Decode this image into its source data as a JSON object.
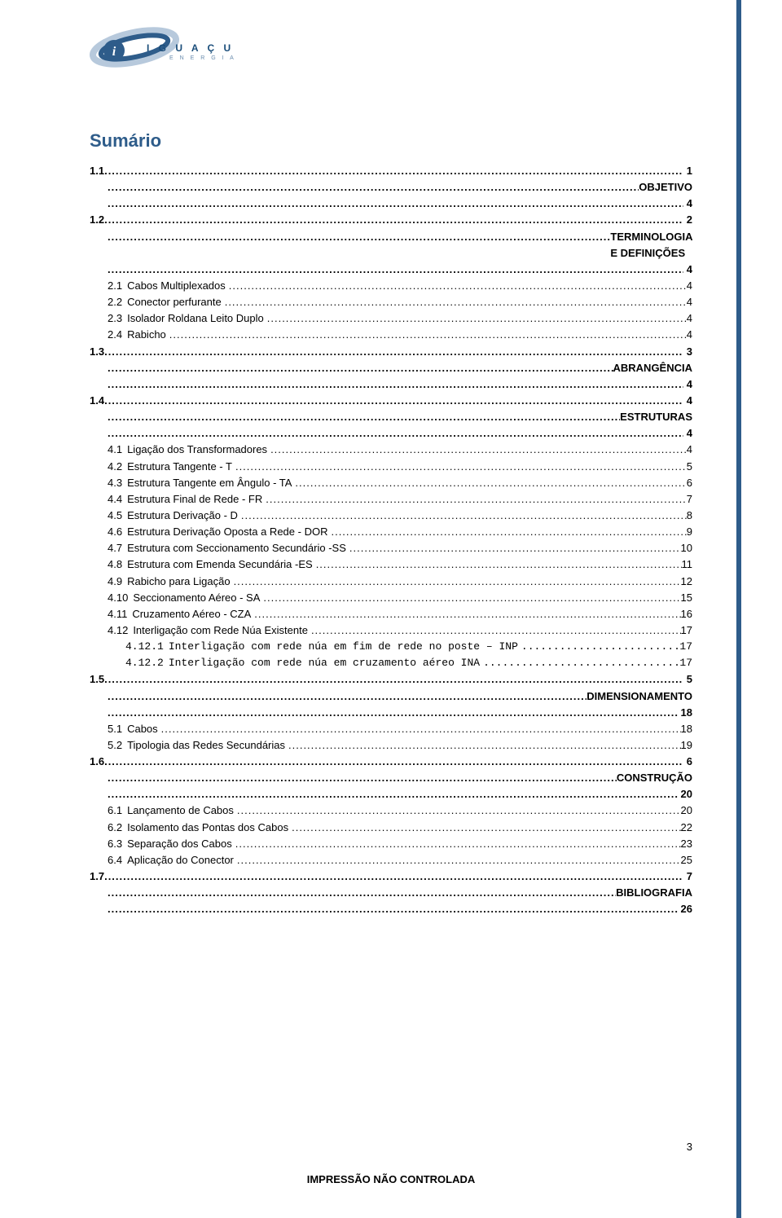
{
  "logo": {
    "brand_letters": "I G U A Ç U",
    "brand_sub": "E  N  E  R  G  I  A"
  },
  "title": "Sumário",
  "footer": "IMPRESSÃO NÃO CONTROLADA",
  "page_number": "3",
  "colors": {
    "accent": "#2e5c8a",
    "text": "#000000",
    "bg": "#ffffff"
  },
  "toc": [
    {
      "type": "top",
      "num": "1.1",
      "page": "1"
    },
    {
      "type": "title",
      "title": "OBJETIVO"
    },
    {
      "type": "titlepage",
      "page": "4"
    },
    {
      "type": "top",
      "num": "1.2",
      "page": "2"
    },
    {
      "type": "title",
      "title": "TERMINOLOGIA E DEFINIÇÕES"
    },
    {
      "type": "titlepage",
      "page": "4"
    },
    {
      "type": "sub1",
      "num": "2.1",
      "label": "Cabos Multiplexados",
      "page": "4"
    },
    {
      "type": "sub1",
      "num": "2.2",
      "label": "Conector perfurante",
      "page": "4"
    },
    {
      "type": "sub1",
      "num": "2.3",
      "label": "Isolador Roldana Leito Duplo",
      "page": "4"
    },
    {
      "type": "sub1",
      "num": "2.4",
      "label": "Rabicho",
      "page": "4"
    },
    {
      "type": "top",
      "num": "1.3",
      "page": "3"
    },
    {
      "type": "title",
      "title": "ABRANGÊNCIA"
    },
    {
      "type": "titlepage",
      "page": "4"
    },
    {
      "type": "top",
      "num": "1.4",
      "page": "4"
    },
    {
      "type": "title",
      "title": "ESTRUTURAS"
    },
    {
      "type": "titlepage",
      "page": "4"
    },
    {
      "type": "sub1",
      "num": "4.1",
      "label": "Ligação dos Transformadores",
      "page": "4"
    },
    {
      "type": "sub1",
      "num": "4.2",
      "label": "Estrutura Tangente - T",
      "page": "5"
    },
    {
      "type": "sub1",
      "num": "4.3",
      "label": "Estrutura Tangente em Ângulo - TA",
      "page": "6"
    },
    {
      "type": "sub1",
      "num": "4.4",
      "label": "Estrutura Final de Rede - FR",
      "page": "7"
    },
    {
      "type": "sub1",
      "num": "4.5",
      "label": "Estrutura Derivação - D",
      "page": "8"
    },
    {
      "type": "sub1",
      "num": "4.6",
      "label": "Estrutura Derivação Oposta a Rede - DOR",
      "page": "9"
    },
    {
      "type": "sub1",
      "num": "4.7",
      "label": "Estrutura com Seccionamento Secundário -SS",
      "page": "10"
    },
    {
      "type": "sub1",
      "num": "4.8",
      "label": "Estrutura com Emenda Secundária -ES",
      "page": "11"
    },
    {
      "type": "sub1",
      "num": "4.9",
      "label": "Rabicho para Ligação",
      "page": "12"
    },
    {
      "type": "sub1",
      "num": "4.10",
      "label": "Seccionamento Aéreo - SA",
      "page": "15"
    },
    {
      "type": "sub1",
      "num": "4.11",
      "label": "Cruzamento Aéreo - CZA",
      "page": "16"
    },
    {
      "type": "sub1",
      "num": "4.12",
      "label": "Interligação com Rede Núa Existente",
      "page": "17"
    },
    {
      "type": "sub2",
      "num": "4.12.1",
      "label": "Interligação com rede núa em fim de rede no poste – INP",
      "page": "17"
    },
    {
      "type": "sub2",
      "num": "4.12.2",
      "label": "Interligação com rede núa em cruzamento aéreo INA",
      "page": "17"
    },
    {
      "type": "top",
      "num": "1.5",
      "page": "5"
    },
    {
      "type": "title",
      "title": "DIMENSIONAMENTO"
    },
    {
      "type": "titlepage",
      "page": "18"
    },
    {
      "type": "sub1",
      "num": "5.1",
      "label": "Cabos",
      "page": "18"
    },
    {
      "type": "sub1",
      "num": "5.2",
      "label": "Tipologia das Redes Secundárias",
      "page": "19"
    },
    {
      "type": "top",
      "num": "1.6",
      "page": "6"
    },
    {
      "type": "title",
      "title": "CONSTRUÇÃO"
    },
    {
      "type": "titlepage",
      "page": "20"
    },
    {
      "type": "sub1",
      "num": "6.1",
      "label": "Lançamento de Cabos",
      "page": "20"
    },
    {
      "type": "sub1",
      "num": "6.2",
      "label": "Isolamento das Pontas dos Cabos",
      "page": "22"
    },
    {
      "type": "sub1",
      "num": "6.3",
      "label": "Separação dos Cabos",
      "page": "23"
    },
    {
      "type": "sub1",
      "num": "6.4",
      "label": "Aplicação do Conector",
      "page": "25"
    },
    {
      "type": "top",
      "num": "1.7",
      "page": "7"
    },
    {
      "type": "title",
      "title": "BIBLIOGRAFIA"
    },
    {
      "type": "titlepage",
      "page": "26"
    }
  ]
}
